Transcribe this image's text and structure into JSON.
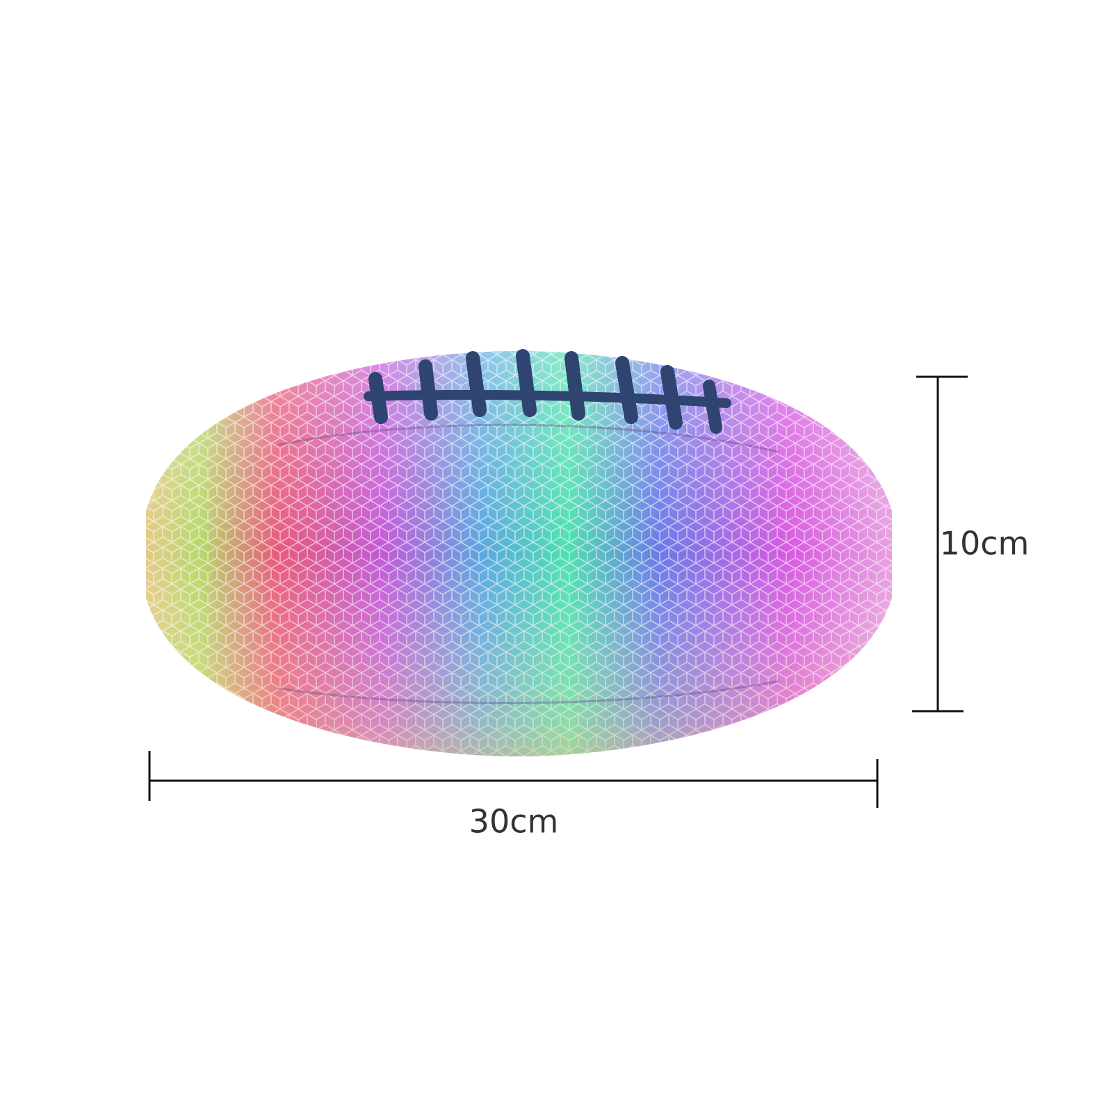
{
  "dimensions": {
    "height": "10cm",
    "width": "30cm"
  }
}
